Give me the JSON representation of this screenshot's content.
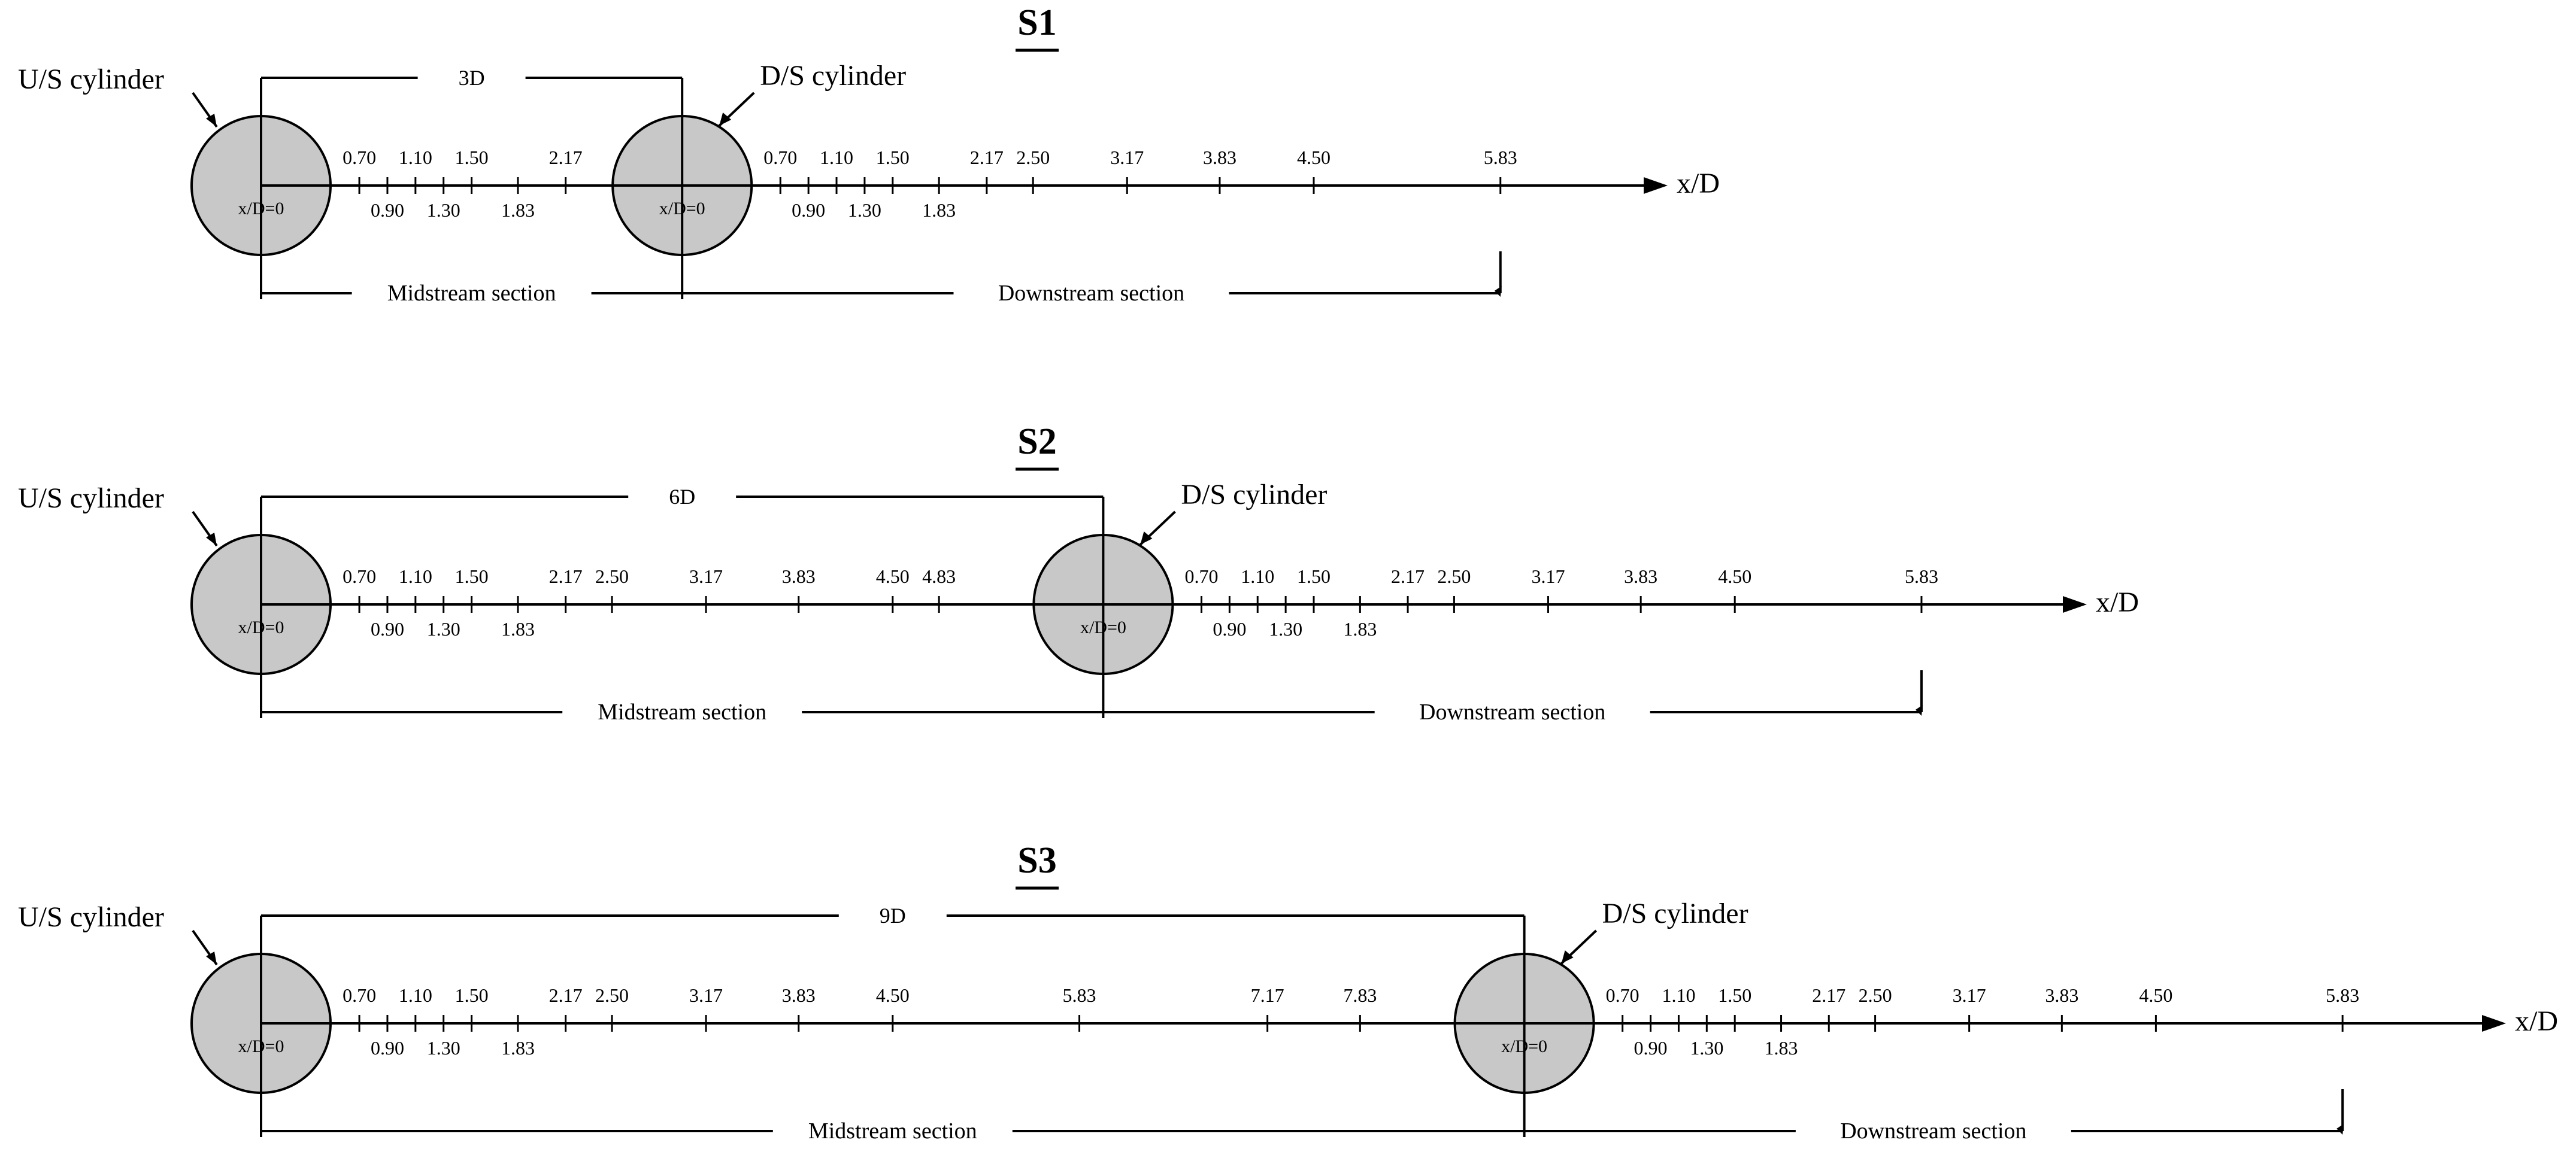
{
  "colors": {
    "line": "#000000",
    "cylinder_fill": "#c8c8c8",
    "background": "#ffffff"
  },
  "panels": [
    {
      "title": "S1",
      "us_label": "U/S cylinder",
      "ds_label": "D/S cylinder",
      "spacing": "3D",
      "spacing_d": 3,
      "axis_label": "x/D",
      "origin_label_us": "x/D=0",
      "origin_label_ds": "x/D=0",
      "mid_section": "Midstream section",
      "down_section": "Downstream section",
      "mid_ticks": [
        "0.70",
        "0.90",
        "1.10",
        "1.30",
        "1.50",
        "1.83",
        "2.17"
      ],
      "down_ticks": [
        "0.70",
        "0.90",
        "1.10",
        "1.30",
        "1.50",
        "1.83",
        "2.17",
        "2.50",
        "3.17",
        "3.83",
        "4.50",
        "5.83"
      ]
    },
    {
      "title": "S2",
      "us_label": "U/S cylinder",
      "ds_label": "D/S cylinder",
      "spacing": "6D",
      "spacing_d": 6,
      "axis_label": "x/D",
      "origin_label_us": "x/D=0",
      "origin_label_ds": "x/D=0",
      "mid_section": "Midstream section",
      "down_section": "Downstream section",
      "mid_ticks": [
        "0.70",
        "0.90",
        "1.10",
        "1.30",
        "1.50",
        "1.83",
        "2.17",
        "2.50",
        "3.17",
        "3.83",
        "4.50",
        "4.83"
      ],
      "down_ticks": [
        "0.70",
        "0.90",
        "1.10",
        "1.30",
        "1.50",
        "1.83",
        "2.17",
        "2.50",
        "3.17",
        "3.83",
        "4.50",
        "5.83"
      ]
    },
    {
      "title": "S3",
      "us_label": "U/S cylinder",
      "ds_label": "D/S cylinder",
      "spacing": "9D",
      "spacing_d": 9,
      "axis_label": "x/D",
      "origin_label_us": "x/D=0",
      "origin_label_ds": "x/D=0",
      "mid_section": "Midstream section",
      "down_section": "Downstream section",
      "mid_ticks": [
        "0.70",
        "0.90",
        "1.10",
        "1.30",
        "1.50",
        "1.83",
        "2.17",
        "2.50",
        "3.17",
        "3.83",
        "4.50",
        "5.83",
        "7.17",
        "7.83"
      ],
      "down_ticks": [
        "0.70",
        "0.90",
        "1.10",
        "1.30",
        "1.50",
        "1.83",
        "2.17",
        "2.50",
        "3.17",
        "3.83",
        "4.50",
        "5.83"
      ]
    }
  ]
}
